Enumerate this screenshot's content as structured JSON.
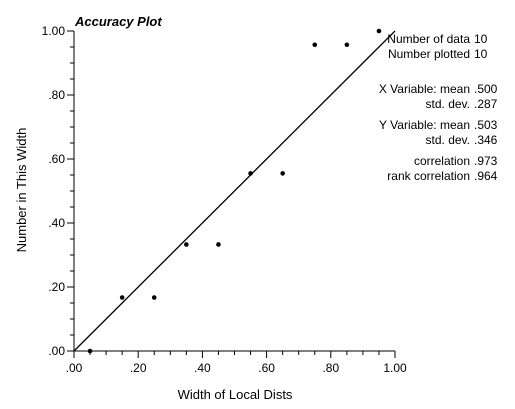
{
  "chart_data": {
    "type": "scatter",
    "title": "Accuracy Plot",
    "xlabel": "Width of Local Dists",
    "ylabel": "Number in This Width",
    "xlim": [
      0,
      1
    ],
    "ylim": [
      0,
      1
    ],
    "x_ticks": [
      ".00",
      ".20",
      ".40",
      ".60",
      ".80",
      "1.00"
    ],
    "y_ticks": [
      ".00",
      ".20",
      ".40",
      ".60",
      ".80",
      "1.00"
    ],
    "grid": false,
    "diagonal_line": true,
    "points": [
      {
        "x": 0.05,
        "y": 0.0
      },
      {
        "x": 0.15,
        "y": 0.167
      },
      {
        "x": 0.25,
        "y": 0.167
      },
      {
        "x": 0.35,
        "y": 0.333
      },
      {
        "x": 0.45,
        "y": 0.333
      },
      {
        "x": 0.55,
        "y": 0.555
      },
      {
        "x": 0.65,
        "y": 0.555
      },
      {
        "x": 0.75,
        "y": 0.957
      },
      {
        "x": 0.85,
        "y": 0.957
      },
      {
        "x": 0.95,
        "y": 1.0
      }
    ]
  },
  "stats": {
    "number_of_data_label": "Number of data",
    "number_of_data_value": "10",
    "number_plotted_label": "Number plotted",
    "number_plotted_value": "10",
    "x_variable_label": "X Variable: mean",
    "x_mean": ".500",
    "x_std_label": "std. dev.",
    "x_std": ".287",
    "y_variable_label": "Y Variable: mean",
    "y_mean": ".503",
    "y_std_label": "std. dev.",
    "y_std": ".346",
    "correlation_label": "correlation",
    "correlation": ".973",
    "rank_correlation_label": "rank correlation",
    "rank_correlation": ".964"
  }
}
